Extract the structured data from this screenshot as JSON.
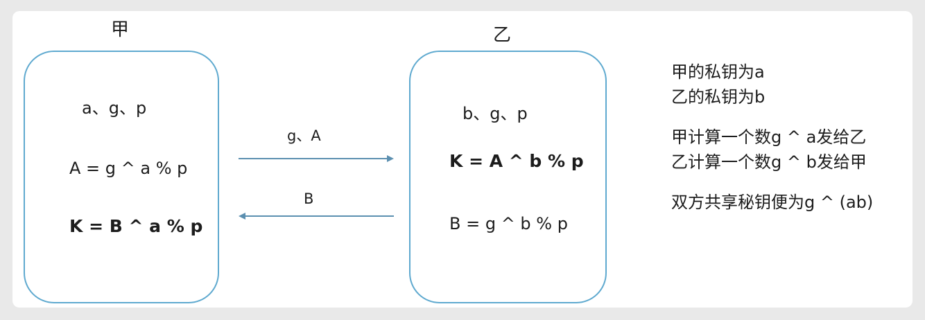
{
  "parties": {
    "left": {
      "label": "甲",
      "params": "a、g、p",
      "eq1": "A = g ^ a % p",
      "eq2": "K = B ^ a % p"
    },
    "right": {
      "label": "乙",
      "params": "b、g、p",
      "eq1": "K = A ^ b % p",
      "eq2": "B = g ^ b % p"
    }
  },
  "arrows": {
    "to_right_label": "g、A",
    "to_left_label": "B",
    "color": "#5b8fb0"
  },
  "notes": {
    "line1": "甲的私钥为a",
    "line2": "乙的私钥为b",
    "line3": "甲计算一个数g ^ a发给乙",
    "line4": "乙计算一个数g ^ b发给甲",
    "line5": "双方共享秘钥便为g ^ (ab)"
  },
  "colors": {
    "box_border": "#5ea9cf",
    "background": "#e9e9e9",
    "panel": "#ffffff"
  }
}
